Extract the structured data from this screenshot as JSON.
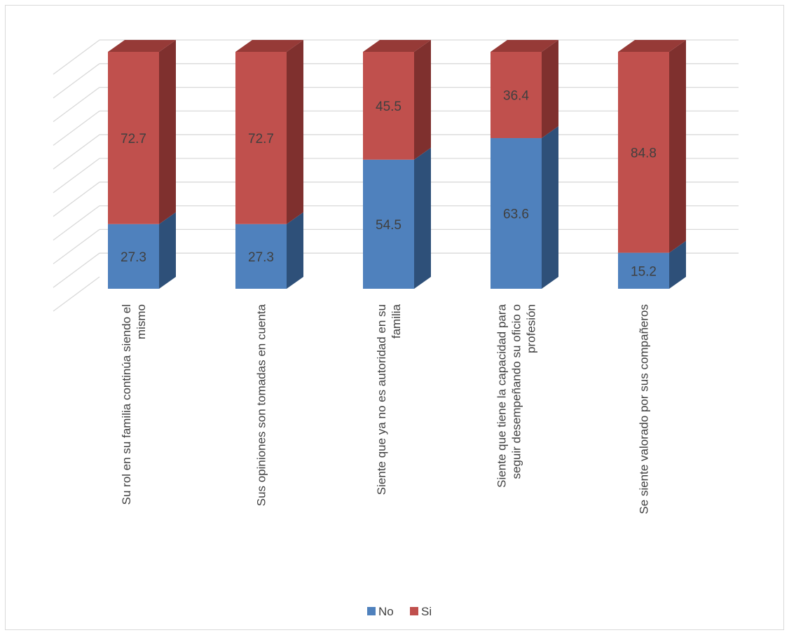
{
  "chart_data": {
    "type": "bar",
    "stacked": true,
    "three_d": true,
    "title": "",
    "xlabel": "",
    "ylabel": "",
    "ylim": [
      0,
      100
    ],
    "grid": true,
    "legend_position": "bottom",
    "categories": [
      {
        "label": "Su rol en su  familia continúa siendo el mismo",
        "lines": [
          "Su rol en su  familia continúa siendo el",
          "mismo"
        ]
      },
      {
        "label": "Sus opiniones son tomadas en cuenta",
        "lines": [
          "Sus opiniones son tomadas en cuenta"
        ]
      },
      {
        "label": "Siente que ya no es autoridad en su familia",
        "lines": [
          "Siente que ya no es autoridad en su",
          "familia"
        ]
      },
      {
        "label": "Siente que tiene la capacidad para seguir desempeñando su oficio o profesión",
        "lines": [
          "Siente que tiene la capacidad para",
          "seguir desempeñando su oficio o",
          "profesión"
        ]
      },
      {
        "label": "Se siente valorado por sus compañeros",
        "lines": [
          "Se siente valorado por sus compañeros"
        ]
      }
    ],
    "series": [
      {
        "name": "No",
        "color": "#4f81bd",
        "side_color": "#2e5079",
        "top_color": "#3f6aa0",
        "values": [
          27.3,
          27.3,
          54.5,
          63.6,
          15.2
        ]
      },
      {
        "name": "Si",
        "color": "#c0504d",
        "side_color": "#7f302e",
        "top_color": "#963a37",
        "values": [
          72.7,
          72.7,
          45.5,
          36.4,
          84.8
        ]
      }
    ]
  }
}
